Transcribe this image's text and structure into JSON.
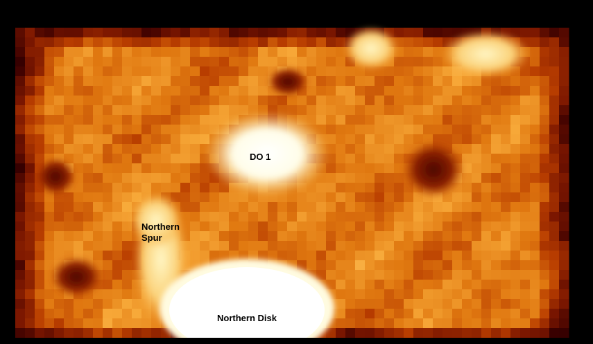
{
  "labels": {
    "do1": "DO 1",
    "spur": "Northern\nSpur",
    "disk": "Northern Disk"
  },
  "colors": {
    "background": "#000000",
    "colormap": [
      "#000000",
      "#3a0000",
      "#7a1600",
      "#b83d00",
      "#e07810",
      "#f7a838",
      "#fde08a",
      "#ffffff"
    ]
  }
}
